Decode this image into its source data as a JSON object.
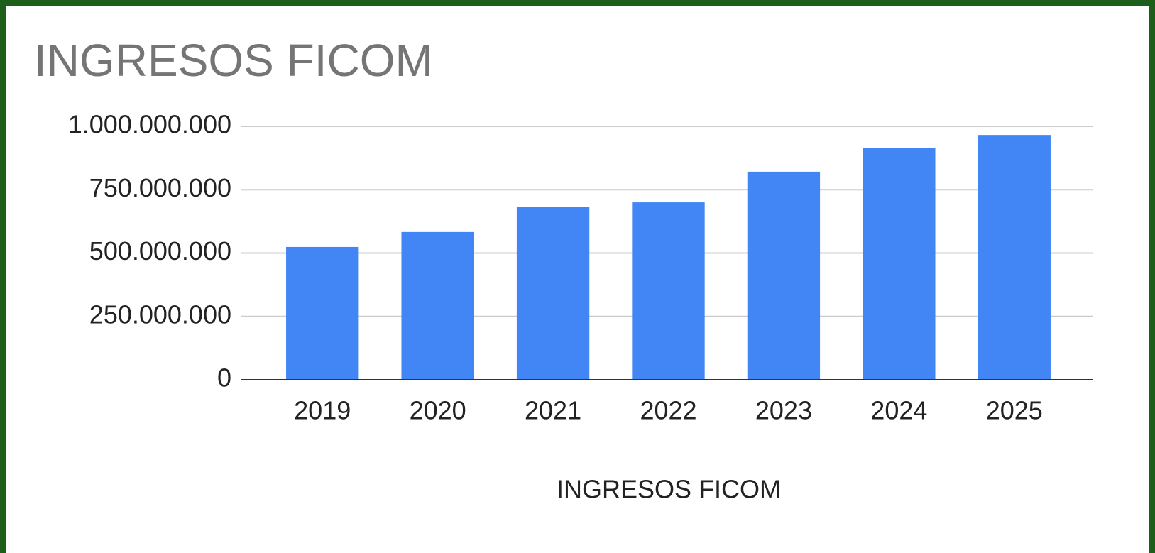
{
  "chart_data": {
    "type": "bar",
    "title": "INGRESOS FICOM",
    "x_label": "INGRESOS FICOM",
    "categories": [
      "2019",
      "2020",
      "2021",
      "2022",
      "2023",
      "2024",
      "2025"
    ],
    "values": [
      524000000,
      583000000,
      681000000,
      700000000,
      821000000,
      916000000,
      966000000
    ],
    "color": "#4285f4",
    "ylim": [
      0,
      1000000000
    ],
    "yticks": [
      0,
      {
        "value": 250000000,
        "label": "250.000.000"
      },
      {
        "value": 500000000,
        "label": "500.000.000"
      },
      {
        "value": 750000000,
        "label": "750.000.000"
      },
      {
        "value": 1000000000,
        "label": "1.000.000.000"
      }
    ],
    "grid": true
  }
}
